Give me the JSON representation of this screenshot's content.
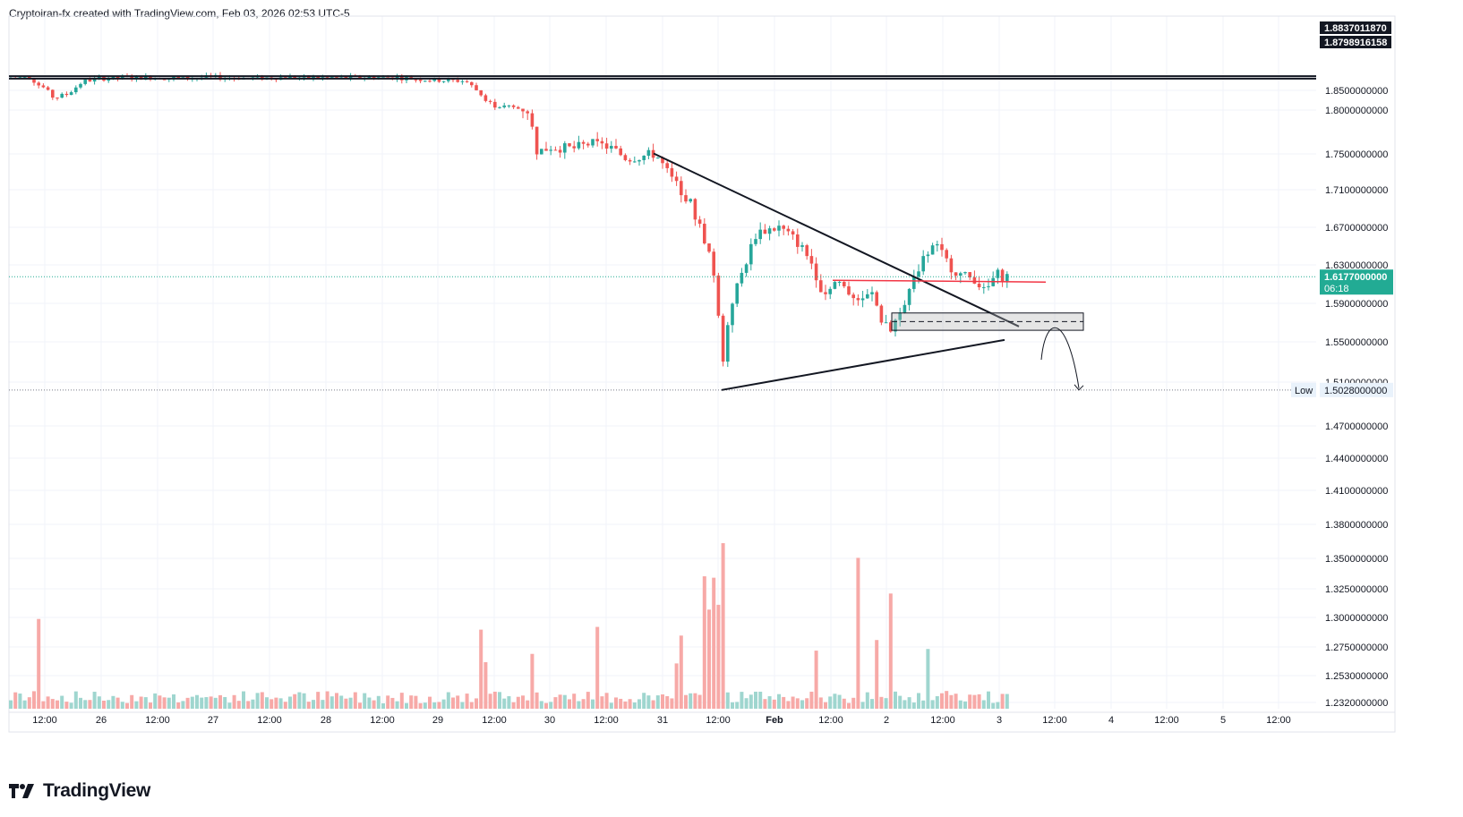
{
  "header": {
    "author": "Cryptoiran-fx",
    "created_with": "created with TradingView.com,",
    "date": "Feb 03, 2026 02:53 UTC-5"
  },
  "brand": {
    "logo_icon": "tradingview-logo-icon",
    "name": "TradingView"
  },
  "colors": {
    "bull": "#26a69a",
    "bear": "#ef5350",
    "bull_volume": "#9fd6cf",
    "bear_volume": "#f7a9a7",
    "grid": "#f0f3fa",
    "axis_border": "#e0e3eb",
    "price_label": "#22ab94",
    "level_line": "#131722",
    "red_line": "#f23645",
    "current_price_line": "#22ab94"
  },
  "chart_data": {
    "type": "candlestick",
    "price_axis": {
      "ticks": [
        "1.8500000000",
        "1.8000000000",
        "1.7500000000",
        "1.7100000000",
        "1.6700000000",
        "1.6300000000",
        "1.5900000000",
        "1.5500000000",
        "1.5100000000",
        "1.4700000000",
        "1.4400000000",
        "1.4100000000",
        "1.3800000000",
        "1.3500000000",
        "1.3250000000",
        "1.3000000000",
        "1.2750000000",
        "1.2530000000",
        "1.2320000000"
      ],
      "labels": [
        {
          "text": "1.8837011870",
          "value": 1.883701187,
          "style": "dark"
        },
        {
          "text": "1.8798916158",
          "value": 1.8798916158,
          "style": "dark"
        },
        {
          "text": "1.6177000000",
          "sub": "06:18",
          "value": 1.6177,
          "style": "current"
        },
        {
          "text": "1.5028000000",
          "tag": "Low",
          "value": 1.5028,
          "style": "low"
        }
      ]
    },
    "time_axis": [
      "12:00",
      "26",
      "12:00",
      "27",
      "12:00",
      "28",
      "12:00",
      "29",
      "12:00",
      "30",
      "12:00",
      "31",
      "12:00",
      "Feb",
      "12:00",
      "2",
      "12:00",
      "3",
      "12:00",
      "4",
      "12:00",
      "5",
      "12:00"
    ],
    "horizontal_levels": [
      1.883701187,
      1.8798916158
    ],
    "current_price": 1.6177,
    "session_low": 1.5028,
    "drawings": [
      {
        "type": "trendline",
        "name": "descending-resistance",
        "from": [
          1.7505
        ],
        "to": [
          1.566
        ]
      },
      {
        "type": "trendline",
        "name": "ascending-support",
        "from": [
          1.5028
        ],
        "to": [
          1.552
        ]
      },
      {
        "type": "horizontal-ray",
        "name": "red-level",
        "value": 1.614
      },
      {
        "type": "rectangle",
        "name": "demand-zone",
        "top": 1.58,
        "bottom": 1.562,
        "mid": 1.571
      },
      {
        "type": "curved-arrow",
        "name": "projection-arrow",
        "target": 1.5028
      }
    ]
  }
}
